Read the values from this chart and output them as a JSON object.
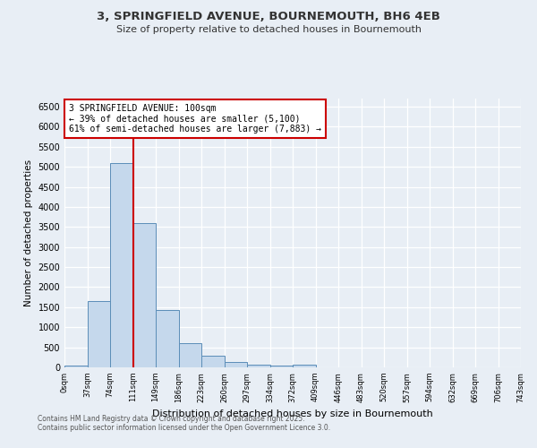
{
  "title1": "3, SPRINGFIELD AVENUE, BOURNEMOUTH, BH6 4EB",
  "title2": "Size of property relative to detached houses in Bournemouth",
  "xlabel": "Distribution of detached houses by size in Bournemouth",
  "ylabel": "Number of detached properties",
  "bar_color": "#c5d8ec",
  "bar_edge_color": "#5b8db8",
  "background_color": "#e8eef5",
  "grid_color": "#ffffff",
  "bin_labels": [
    "0sqm",
    "37sqm",
    "74sqm",
    "111sqm",
    "149sqm",
    "186sqm",
    "223sqm",
    "260sqm",
    "297sqm",
    "334sqm",
    "372sqm",
    "409sqm",
    "446sqm",
    "483sqm",
    "520sqm",
    "557sqm",
    "594sqm",
    "632sqm",
    "669sqm",
    "706sqm",
    "743sqm"
  ],
  "bar_heights": [
    50,
    1650,
    5100,
    3600,
    1430,
    600,
    300,
    125,
    75,
    50,
    75,
    0,
    0,
    0,
    0,
    0,
    0,
    0,
    0,
    0
  ],
  "red_line_index": 3,
  "annotation_text": "3 SPRINGFIELD AVENUE: 100sqm\n← 39% of detached houses are smaller (5,100)\n61% of semi-detached houses are larger (7,883) →",
  "annotation_box_color": "#ffffff",
  "annotation_box_edge_color": "#cc0000",
  "ylim": [
    0,
    6700
  ],
  "yticks": [
    0,
    500,
    1000,
    1500,
    2000,
    2500,
    3000,
    3500,
    4000,
    4500,
    5000,
    5500,
    6000,
    6500
  ],
  "footer1": "Contains HM Land Registry data © Crown copyright and database right 2025.",
  "footer2": "Contains public sector information licensed under the Open Government Licence 3.0."
}
